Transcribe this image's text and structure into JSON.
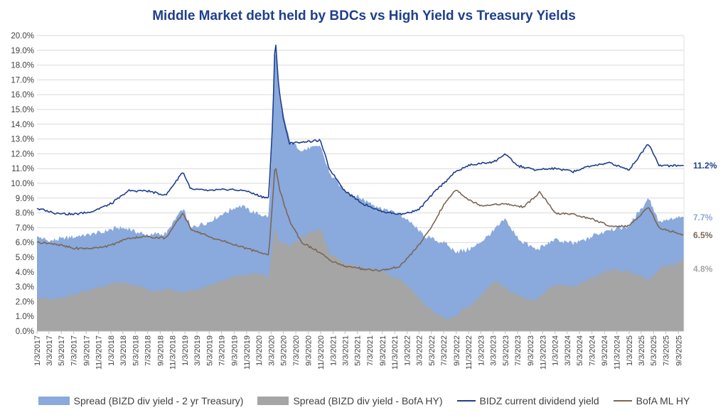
{
  "chart_data": {
    "type": "area",
    "title": "Middle Market debt held by BDCs vs High Yield vs Treasury Yields",
    "ylim": [
      0,
      20
    ],
    "yticks": [
      "0.0%",
      "1.0%",
      "2.0%",
      "3.0%",
      "4.0%",
      "5.0%",
      "6.0%",
      "7.0%",
      "8.0%",
      "9.0%",
      "10.0%",
      "11.0%",
      "12.0%",
      "13.0%",
      "14.0%",
      "15.0%",
      "16.0%",
      "17.0%",
      "18.0%",
      "19.0%",
      "20.0%"
    ],
    "x_range": [
      "2017-01-03",
      "2025-09-30"
    ],
    "xticks": [
      "1/3/2017",
      "3/3/2017",
      "5/3/2017",
      "7/3/2017",
      "9/3/2017",
      "11/3/2017",
      "1/3/2018",
      "3/3/2018",
      "5/3/2018",
      "7/3/2018",
      "9/3/2018",
      "11/3/2018",
      "1/3/2019",
      "3/3/2019",
      "5/3/2019",
      "7/3/2019",
      "9/3/2019",
      "11/3/2019",
      "1/3/2020",
      "3/3/2020",
      "5/3/2020",
      "7/3/2020",
      "9/3/2020",
      "11/3/2020",
      "1/3/2021",
      "3/3/2021",
      "5/3/2021",
      "7/3/2021",
      "9/3/2021",
      "11/3/2021",
      "1/3/2022",
      "3/3/2022",
      "5/3/2022",
      "7/3/2022",
      "9/3/2022",
      "11/3/2022",
      "1/3/2023",
      "3/3/2023",
      "5/3/2023",
      "7/3/2023",
      "9/3/2023",
      "11/3/2023",
      "1/3/2024",
      "3/3/2024",
      "5/3/2024",
      "7/3/2024",
      "9/3/2024",
      "11/3/2024",
      "1/3/2025",
      "3/3/2025",
      "5/3/2025",
      "7/3/2025",
      "9/3/2025"
    ],
    "grid": true,
    "legend_position": "bottom",
    "series": [
      {
        "name": "Spread (BIZD div yield - 2 yr Treasury)",
        "kind": "area",
        "color": "#8aa9dc",
        "end_label": "7.7%",
        "points": [
          [
            "2017-01-03",
            6.4
          ],
          [
            "2017-03-01",
            6.1
          ],
          [
            "2017-06-01",
            6.3
          ],
          [
            "2017-09-01",
            6.5
          ],
          [
            "2017-12-01",
            6.7
          ],
          [
            "2018-02-01",
            7.0
          ],
          [
            "2018-04-01",
            6.9
          ],
          [
            "2018-07-01",
            6.5
          ],
          [
            "2018-10-01",
            6.6
          ],
          [
            "2018-12-24",
            8.3
          ],
          [
            "2019-02-01",
            7.0
          ],
          [
            "2019-05-01",
            7.4
          ],
          [
            "2019-08-01",
            8.1
          ],
          [
            "2019-10-01",
            8.5
          ],
          [
            "2019-12-01",
            8.1
          ],
          [
            "2020-02-20",
            7.7
          ],
          [
            "2020-03-12",
            14.0
          ],
          [
            "2020-03-23",
            19.6
          ],
          [
            "2020-04-10",
            16.0
          ],
          [
            "2020-05-01",
            14.8
          ],
          [
            "2020-06-01",
            12.9
          ],
          [
            "2020-08-01",
            12.2
          ],
          [
            "2020-11-01",
            12.6
          ],
          [
            "2020-12-15",
            10.7
          ],
          [
            "2021-03-01",
            9.5
          ],
          [
            "2021-06-01",
            8.9
          ],
          [
            "2021-09-01",
            8.3
          ],
          [
            "2021-12-01",
            7.9
          ],
          [
            "2022-02-01",
            7.2
          ],
          [
            "2022-04-01",
            6.4
          ],
          [
            "2022-07-01",
            6.0
          ],
          [
            "2022-09-01",
            5.4
          ],
          [
            "2022-11-01",
            5.5
          ],
          [
            "2023-01-01",
            6.0
          ],
          [
            "2023-03-15",
            6.9
          ],
          [
            "2023-05-01",
            7.6
          ],
          [
            "2023-07-01",
            6.3
          ],
          [
            "2023-10-01",
            5.5
          ],
          [
            "2024-01-01",
            6.2
          ],
          [
            "2024-04-01",
            5.9
          ],
          [
            "2024-07-01",
            6.4
          ],
          [
            "2024-10-01",
            6.9
          ],
          [
            "2025-01-01",
            7.1
          ],
          [
            "2025-04-08",
            9.0
          ],
          [
            "2025-06-01",
            7.4
          ],
          [
            "2025-09-30",
            7.7
          ]
        ]
      },
      {
        "name": "Spread (BIZD div yield - BofA HY)",
        "kind": "area",
        "color": "#a5a5a5",
        "end_label": "4.8%",
        "points": [
          [
            "2017-01-03",
            2.3
          ],
          [
            "2017-04-01",
            2.1
          ],
          [
            "2017-07-01",
            2.5
          ],
          [
            "2017-10-01",
            2.8
          ],
          [
            "2018-02-01",
            3.3
          ],
          [
            "2018-05-01",
            3.1
          ],
          [
            "2018-08-01",
            2.7
          ],
          [
            "2018-11-01",
            2.8
          ],
          [
            "2019-01-01",
            2.6
          ],
          [
            "2019-04-01",
            3.0
          ],
          [
            "2019-07-01",
            3.4
          ],
          [
            "2019-10-01",
            3.8
          ],
          [
            "2020-01-01",
            3.9
          ],
          [
            "2020-02-20",
            3.6
          ],
          [
            "2020-03-20",
            7.0
          ],
          [
            "2020-04-15",
            6.0
          ],
          [
            "2020-06-01",
            5.8
          ],
          [
            "2020-09-01",
            6.6
          ],
          [
            "2020-11-01",
            6.9
          ],
          [
            "2020-12-15",
            5.3
          ],
          [
            "2021-03-01",
            4.6
          ],
          [
            "2021-06-01",
            4.3
          ],
          [
            "2021-09-01",
            4.0
          ],
          [
            "2021-12-01",
            3.5
          ],
          [
            "2022-02-01",
            2.6
          ],
          [
            "2022-04-01",
            1.8
          ],
          [
            "2022-06-01",
            1.1
          ],
          [
            "2022-08-01",
            0.8
          ],
          [
            "2022-10-01",
            1.4
          ],
          [
            "2022-12-01",
            2.0
          ],
          [
            "2023-03-15",
            3.4
          ],
          [
            "2023-05-01",
            3.0
          ],
          [
            "2023-07-01",
            2.4
          ],
          [
            "2023-10-01",
            2.1
          ],
          [
            "2024-01-01",
            3.2
          ],
          [
            "2024-04-01",
            3.0
          ],
          [
            "2024-07-01",
            3.6
          ],
          [
            "2024-10-01",
            4.2
          ],
          [
            "2025-01-01",
            4.0
          ],
          [
            "2025-04-08",
            3.5
          ],
          [
            "2025-06-01",
            4.2
          ],
          [
            "2025-09-30",
            4.8
          ]
        ]
      },
      {
        "name": "BIDZ current dividend yield",
        "kind": "line",
        "color": "#1f3f8c",
        "end_label": "11.2%",
        "points": [
          [
            "2017-01-03",
            8.3
          ],
          [
            "2017-04-01",
            8.0
          ],
          [
            "2017-07-01",
            7.9
          ],
          [
            "2017-10-01",
            8.1
          ],
          [
            "2018-01-01",
            8.6
          ],
          [
            "2018-04-01",
            9.5
          ],
          [
            "2018-07-01",
            9.5
          ],
          [
            "2018-10-01",
            9.2
          ],
          [
            "2018-12-24",
            10.8
          ],
          [
            "2019-02-01",
            9.6
          ],
          [
            "2019-05-01",
            9.5
          ],
          [
            "2019-08-01",
            9.6
          ],
          [
            "2019-11-01",
            9.5
          ],
          [
            "2020-01-15",
            9.1
          ],
          [
            "2020-02-20",
            9.0
          ],
          [
            "2020-03-12",
            14.5
          ],
          [
            "2020-03-23",
            20.0
          ],
          [
            "2020-04-10",
            16.5
          ],
          [
            "2020-05-01",
            14.5
          ],
          [
            "2020-06-01",
            12.7
          ],
          [
            "2020-08-01",
            12.8
          ],
          [
            "2020-11-01",
            12.9
          ],
          [
            "2020-12-15",
            11.0
          ],
          [
            "2021-03-01",
            9.5
          ],
          [
            "2021-06-01",
            8.6
          ],
          [
            "2021-09-01",
            8.1
          ],
          [
            "2021-12-01",
            7.9
          ],
          [
            "2022-03-01",
            8.2
          ],
          [
            "2022-06-01",
            9.6
          ],
          [
            "2022-09-01",
            10.8
          ],
          [
            "2022-11-01",
            11.2
          ],
          [
            "2023-03-15",
            11.5
          ],
          [
            "2023-05-01",
            12.0
          ],
          [
            "2023-07-01",
            11.2
          ],
          [
            "2023-10-01",
            10.9
          ],
          [
            "2024-01-01",
            11.0
          ],
          [
            "2024-04-01",
            10.8
          ],
          [
            "2024-07-01",
            11.2
          ],
          [
            "2024-10-01",
            11.4
          ],
          [
            "2025-01-01",
            10.9
          ],
          [
            "2025-04-08",
            12.7
          ],
          [
            "2025-06-01",
            11.2
          ],
          [
            "2025-09-30",
            11.2
          ]
        ]
      },
      {
        "name": "BofA ML HY",
        "kind": "line",
        "color": "#7b6657",
        "end_label": "6.5%",
        "points": [
          [
            "2017-01-03",
            6.0
          ],
          [
            "2017-04-01",
            5.9
          ],
          [
            "2017-07-01",
            5.6
          ],
          [
            "2017-10-01",
            5.6
          ],
          [
            "2018-01-01",
            5.8
          ],
          [
            "2018-04-01",
            6.3
          ],
          [
            "2018-07-01",
            6.4
          ],
          [
            "2018-10-01",
            6.3
          ],
          [
            "2018-12-24",
            8.0
          ],
          [
            "2019-02-01",
            6.9
          ],
          [
            "2019-05-01",
            6.4
          ],
          [
            "2019-08-01",
            6.0
          ],
          [
            "2019-11-01",
            5.6
          ],
          [
            "2020-01-15",
            5.3
          ],
          [
            "2020-02-20",
            5.1
          ],
          [
            "2020-03-23",
            11.3
          ],
          [
            "2020-04-15",
            9.5
          ],
          [
            "2020-06-01",
            7.5
          ],
          [
            "2020-08-01",
            6.0
          ],
          [
            "2020-11-01",
            5.3
          ],
          [
            "2020-12-15",
            4.8
          ],
          [
            "2021-03-01",
            4.4
          ],
          [
            "2021-06-01",
            4.2
          ],
          [
            "2021-09-01",
            4.1
          ],
          [
            "2021-12-01",
            4.4
          ],
          [
            "2022-03-01",
            5.8
          ],
          [
            "2022-05-01",
            7.0
          ],
          [
            "2022-07-01",
            8.5
          ],
          [
            "2022-09-01",
            9.6
          ],
          [
            "2022-11-01",
            8.9
          ],
          [
            "2023-01-01",
            8.5
          ],
          [
            "2023-05-01",
            8.6
          ],
          [
            "2023-08-01",
            8.4
          ],
          [
            "2023-10-20",
            9.4
          ],
          [
            "2024-01-01",
            8.0
          ],
          [
            "2024-04-01",
            7.9
          ],
          [
            "2024-07-01",
            7.6
          ],
          [
            "2024-10-01",
            7.1
          ],
          [
            "2025-01-01",
            7.1
          ],
          [
            "2025-04-08",
            8.4
          ],
          [
            "2025-06-01",
            7.0
          ],
          [
            "2025-09-30",
            6.5
          ]
        ]
      }
    ]
  }
}
